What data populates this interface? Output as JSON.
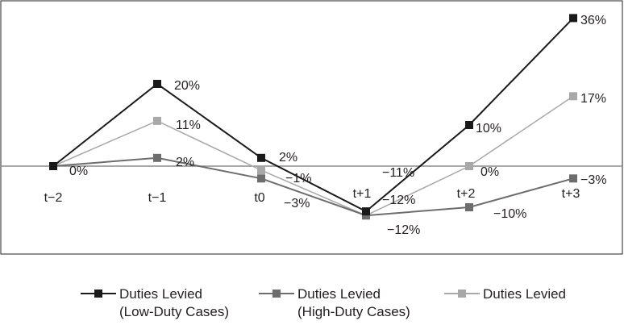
{
  "chart_data": {
    "type": "line",
    "categories": [
      "t−2",
      "t−1",
      "t0",
      "t+1",
      "t+2",
      "t+3"
    ],
    "series": [
      {
        "name": "Duties Levied\n(Low-Duty Cases)",
        "color": "#1a1a1a",
        "values": [
          0,
          20,
          2,
          -11,
          10,
          36
        ],
        "labels": [
          "",
          "20%",
          "2%",
          "−11%",
          "10%",
          "36%"
        ]
      },
      {
        "name": "Duties Levied\n(High-Duty Cases)",
        "color": "#6d6d6d",
        "values": [
          0,
          2,
          -3,
          -12,
          -10,
          -3
        ],
        "labels": [
          "",
          "2%",
          "−3%",
          "−12%",
          "−10%",
          "−3%"
        ]
      },
      {
        "name": "Duties Levied",
        "color": "#a8a8a8",
        "values": [
          0,
          11,
          -1,
          -12,
          0,
          17
        ],
        "labels": [
          "0%",
          "11%",
          "−1%",
          "−12%",
          "0%",
          "17%"
        ]
      }
    ],
    "ylim": [
      -20,
      38
    ],
    "zero_line": true,
    "legend_position": "bottom"
  }
}
